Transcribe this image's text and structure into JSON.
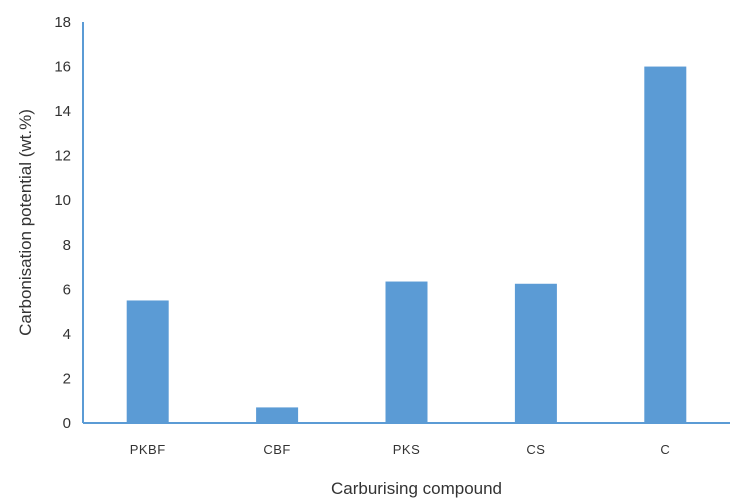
{
  "chart_data": {
    "type": "bar",
    "title": "",
    "xlabel": "Carburising compound",
    "ylabel": "Carbonisation potential (wt.%)",
    "categories": [
      "PKBF",
      "CBF",
      "PKS",
      "CS",
      "C"
    ],
    "values": [
      5.5,
      0.7,
      6.35,
      6.25,
      16.0
    ],
    "ylim": [
      0,
      18
    ],
    "yticks": [
      "0",
      "2",
      "4",
      "6",
      "8",
      "10",
      "12",
      "14",
      "16",
      "18"
    ],
    "grid": false,
    "legend": "none",
    "bar_color": "#5b9bd5",
    "axis_color": "#5b9bd5"
  }
}
